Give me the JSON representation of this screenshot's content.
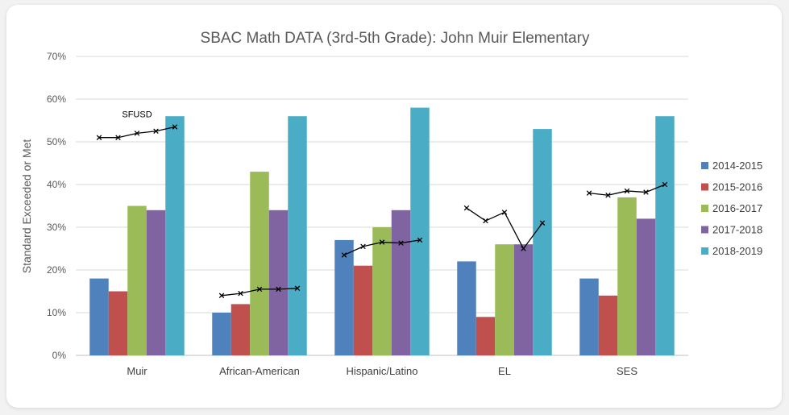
{
  "chart_data": {
    "type": "bar",
    "title": "SBAC Math DATA (3rd-5th Grade): John Muir Elementary",
    "xlabel": "",
    "ylabel": "Standard Exceeded or Met",
    "ylim": [
      0,
      70
    ],
    "yticks": [
      "0%",
      "10%",
      "20%",
      "30%",
      "40%",
      "50%",
      "60%",
      "70%"
    ],
    "grid": true,
    "legend_position": "right",
    "categories": [
      "Muir",
      "African-American",
      "Hispanic/Latino",
      "EL",
      "SES"
    ],
    "series": [
      {
        "name": "2014-2015",
        "color": "#4f81bd",
        "values": [
          18,
          10,
          27,
          22,
          18
        ]
      },
      {
        "name": "2015-2016",
        "color": "#c0504d",
        "values": [
          15,
          12,
          21,
          9,
          14
        ]
      },
      {
        "name": "2016-2017",
        "color": "#9bbb59",
        "values": [
          35,
          43,
          30,
          26,
          37
        ]
      },
      {
        "name": "2017-2018",
        "color": "#8064a2",
        "values": [
          34,
          34,
          34,
          26,
          32
        ]
      },
      {
        "name": "2018-2019",
        "color": "#4bacc6",
        "values": [
          56,
          56,
          58,
          53,
          56
        ]
      }
    ],
    "overlay_lines": [
      {
        "category": "Muir",
        "values": [
          51,
          51,
          52,
          52.5,
          53.5
        ]
      },
      {
        "category": "African-American",
        "values": [
          14,
          14.5,
          15.5,
          15.5,
          15.7
        ]
      },
      {
        "category": "Hispanic/Latino",
        "values": [
          23.5,
          25.5,
          26.5,
          26.3,
          27
        ]
      },
      {
        "category": "EL",
        "values": [
          34.5,
          31.5,
          33.5,
          25,
          31
        ]
      },
      {
        "category": "SES",
        "values": [
          38,
          37.5,
          38.5,
          38.2,
          40
        ]
      }
    ],
    "annotation": "SFUSD",
    "annotation_category": "Muir"
  }
}
